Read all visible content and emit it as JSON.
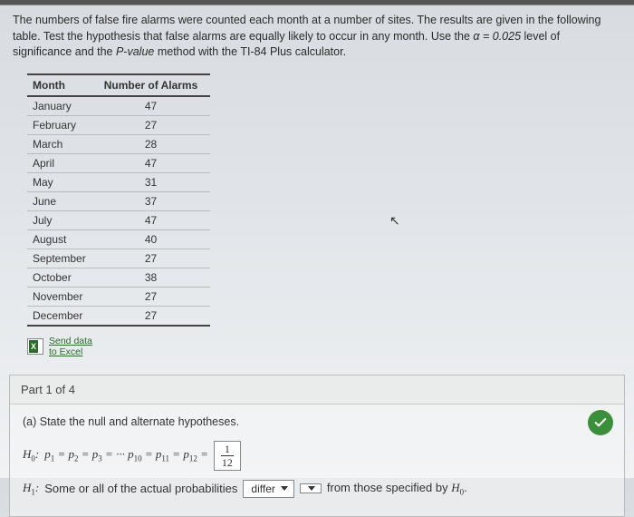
{
  "intro": {
    "text_before_alpha": "The numbers of false fire alarms were counted each month at a number of sites. The results are given in the following table. Test the hypothesis that false alarms are equally likely to occur in any month. Use the ",
    "alpha_expr": "α = 0.025",
    "text_after_alpha": " level of significance and the ",
    "pvalue": "P-value",
    "text_tail": " method with the TI-84 Plus calculator."
  },
  "table": {
    "col_month": "Month",
    "col_alarms": "Number of Alarms",
    "rows": [
      {
        "month": "January",
        "n": "47"
      },
      {
        "month": "February",
        "n": "27"
      },
      {
        "month": "March",
        "n": "28"
      },
      {
        "month": "April",
        "n": "47"
      },
      {
        "month": "May",
        "n": "31"
      },
      {
        "month": "June",
        "n": "37"
      },
      {
        "month": "July",
        "n": "47"
      },
      {
        "month": "August",
        "n": "40"
      },
      {
        "month": "September",
        "n": "27"
      },
      {
        "month": "October",
        "n": "38"
      },
      {
        "month": "November",
        "n": "27"
      },
      {
        "month": "December",
        "n": "27"
      }
    ]
  },
  "excel": {
    "line1": "Send data",
    "line2": "to Excel"
  },
  "part": {
    "header": "Part 1 of 4",
    "prompt": "(a) State the null and alternate hypotheses.",
    "h0_label": "H₀:",
    "h0_body": "p₁ = p₂ = p₃ = ··· p₁₀ = p₁₁ = p₁₂ =",
    "frac_top": "1",
    "frac_bot": "12",
    "h1_label": "H₁:",
    "h1_before": "Some or all of the actual probabilities",
    "h1_dropdown": "differ",
    "h1_after": "from those specified by H₀."
  }
}
